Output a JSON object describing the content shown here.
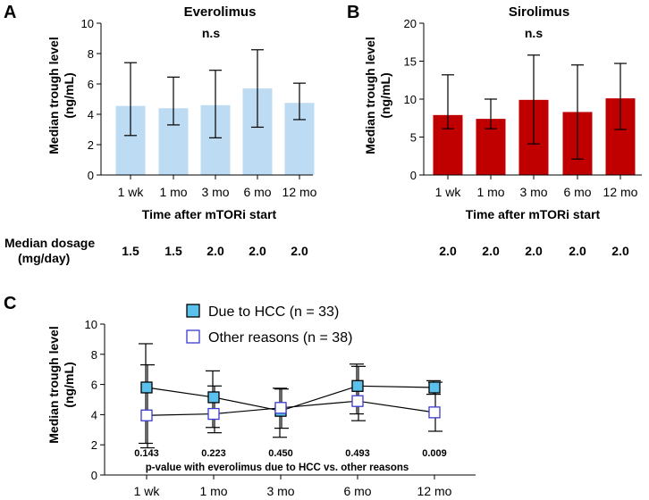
{
  "chart_data": [
    {
      "panel": "A",
      "type": "bar",
      "title": "Everolimus",
      "annotation": "n.s",
      "ylabel_line1": "Median trough level",
      "ylabel_line2": "(ng/mL)",
      "xlabel": "Time after mTORi start",
      "categories": [
        "1 wk",
        "1 mo",
        "3 mo",
        "6 mo",
        "12 mo"
      ],
      "values": [
        4.55,
        4.4,
        4.6,
        5.7,
        4.75
      ],
      "error_upper": [
        7.4,
        6.45,
        6.9,
        8.25,
        6.05
      ],
      "error_lower": [
        2.6,
        3.3,
        2.45,
        3.15,
        3.65
      ],
      "ylim": [
        0,
        10
      ],
      "yticks": [
        "0",
        "2",
        "4",
        "6",
        "8",
        "10"
      ],
      "bar_color": "#bddcf3",
      "dosage_label_line1": "Median dosage",
      "dosage_label_line2": "(mg/day)",
      "dosage": [
        "1.5",
        "1.5",
        "2.0",
        "2.0",
        "2.0"
      ]
    },
    {
      "panel": "B",
      "type": "bar",
      "title": "Sirolimus",
      "annotation": "n.s",
      "ylabel_line1": "Median trough level",
      "ylabel_line2": "(ng/mL)",
      "xlabel": "Time after mTORi start",
      "categories": [
        "1 wk",
        "1 mo",
        "3 mo",
        "6 mo",
        "12 mo"
      ],
      "values": [
        7.9,
        7.4,
        9.9,
        8.3,
        10.1
      ],
      "error_upper": [
        13.2,
        10.0,
        15.8,
        14.5,
        14.7
      ],
      "error_lower": [
        6.1,
        6.1,
        4.1,
        2.1,
        6.0
      ],
      "ylim": [
        0,
        20
      ],
      "yticks": [
        "0",
        "5",
        "10",
        "15",
        "20"
      ],
      "bar_color": "#c00000",
      "dosage": [
        "2.0",
        "2.0",
        "2.0",
        "2.0",
        "2.0"
      ]
    },
    {
      "panel": "C",
      "type": "line",
      "ylabel_line1": "Median trough level",
      "ylabel_line2": "(ng/mL)",
      "categories": [
        "1 wk",
        "1 mo",
        "3 mo",
        "6 mo",
        "12 mo"
      ],
      "ylim": [
        0,
        10
      ],
      "yticks": [
        "0",
        "2",
        "4",
        "6",
        "8",
        "10"
      ],
      "series": [
        {
          "name": "Due to HCC (n = 33)",
          "color": "#5bc0eb",
          "values": [
            5.8,
            5.15,
            4.25,
            5.9,
            5.8
          ],
          "error_upper": [
            8.7,
            6.9,
            5.75,
            7.35,
            6.25
          ],
          "error_lower": [
            2.1,
            3.15,
            2.5,
            4.05,
            5.35
          ]
        },
        {
          "name": "Other reasons (n = 38)",
          "color": "#ffffff",
          "edge_color": "#3a3ad0",
          "values": [
            3.95,
            4.05,
            4.45,
            4.9,
            4.15
          ],
          "error_upper": [
            7.3,
            5.9,
            5.7,
            7.2,
            6.15
          ],
          "error_lower": [
            1.8,
            2.8,
            3.1,
            3.6,
            2.9
          ]
        }
      ],
      "pvalues": [
        "0.143",
        "0.223",
        "0.450",
        "0.493",
        "0.009"
      ],
      "pvalue_note": "p-value with everolimus due to HCC vs. other reasons"
    }
  ]
}
